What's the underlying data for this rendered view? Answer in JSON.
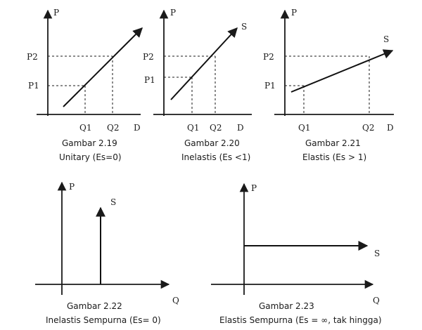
{
  "colors": {
    "ink": "#1a1a1a",
    "background": "#ffffff"
  },
  "figures": [
    {
      "id": "fig-2-19",
      "caption_title": "Gambar 2.19",
      "caption_sub": "Unitary (Es=0)",
      "axis_y": "P",
      "axis_x": "D",
      "tick_y": [
        "P2",
        "P1"
      ],
      "tick_x": [
        "Q1",
        "Q2"
      ],
      "curve_label": ""
    },
    {
      "id": "fig-2-20",
      "caption_title": "Gambar 2.20",
      "caption_sub": "Inelastis (Es <1)",
      "axis_y": "P",
      "axis_x": "D",
      "tick_y": [
        "P2",
        "P1"
      ],
      "tick_x": [
        "Q1",
        "Q2"
      ],
      "curve_label": "S"
    },
    {
      "id": "fig-2-21",
      "caption_title": "Gambar 2.21",
      "caption_sub": "Elastis (Es > 1)",
      "axis_y": "P",
      "axis_x": "D",
      "tick_y": [
        "P2",
        "P1"
      ],
      "tick_x": [
        "Q1",
        "Q2"
      ],
      "curve_label": "S"
    },
    {
      "id": "fig-2-22",
      "caption_title": "Gambar 2.22",
      "caption_sub": "Inelastis Sempurna (Es= 0)",
      "axis_y": "P",
      "axis_x": "Q",
      "curve_label": "S"
    },
    {
      "id": "fig-2-23",
      "caption_title": "Gambar 2.23",
      "caption_sub": "Elastis Sempurna (Es = ∞, tak hingga)",
      "axis_y": "P",
      "axis_x": "Q",
      "curve_label": "S"
    }
  ]
}
